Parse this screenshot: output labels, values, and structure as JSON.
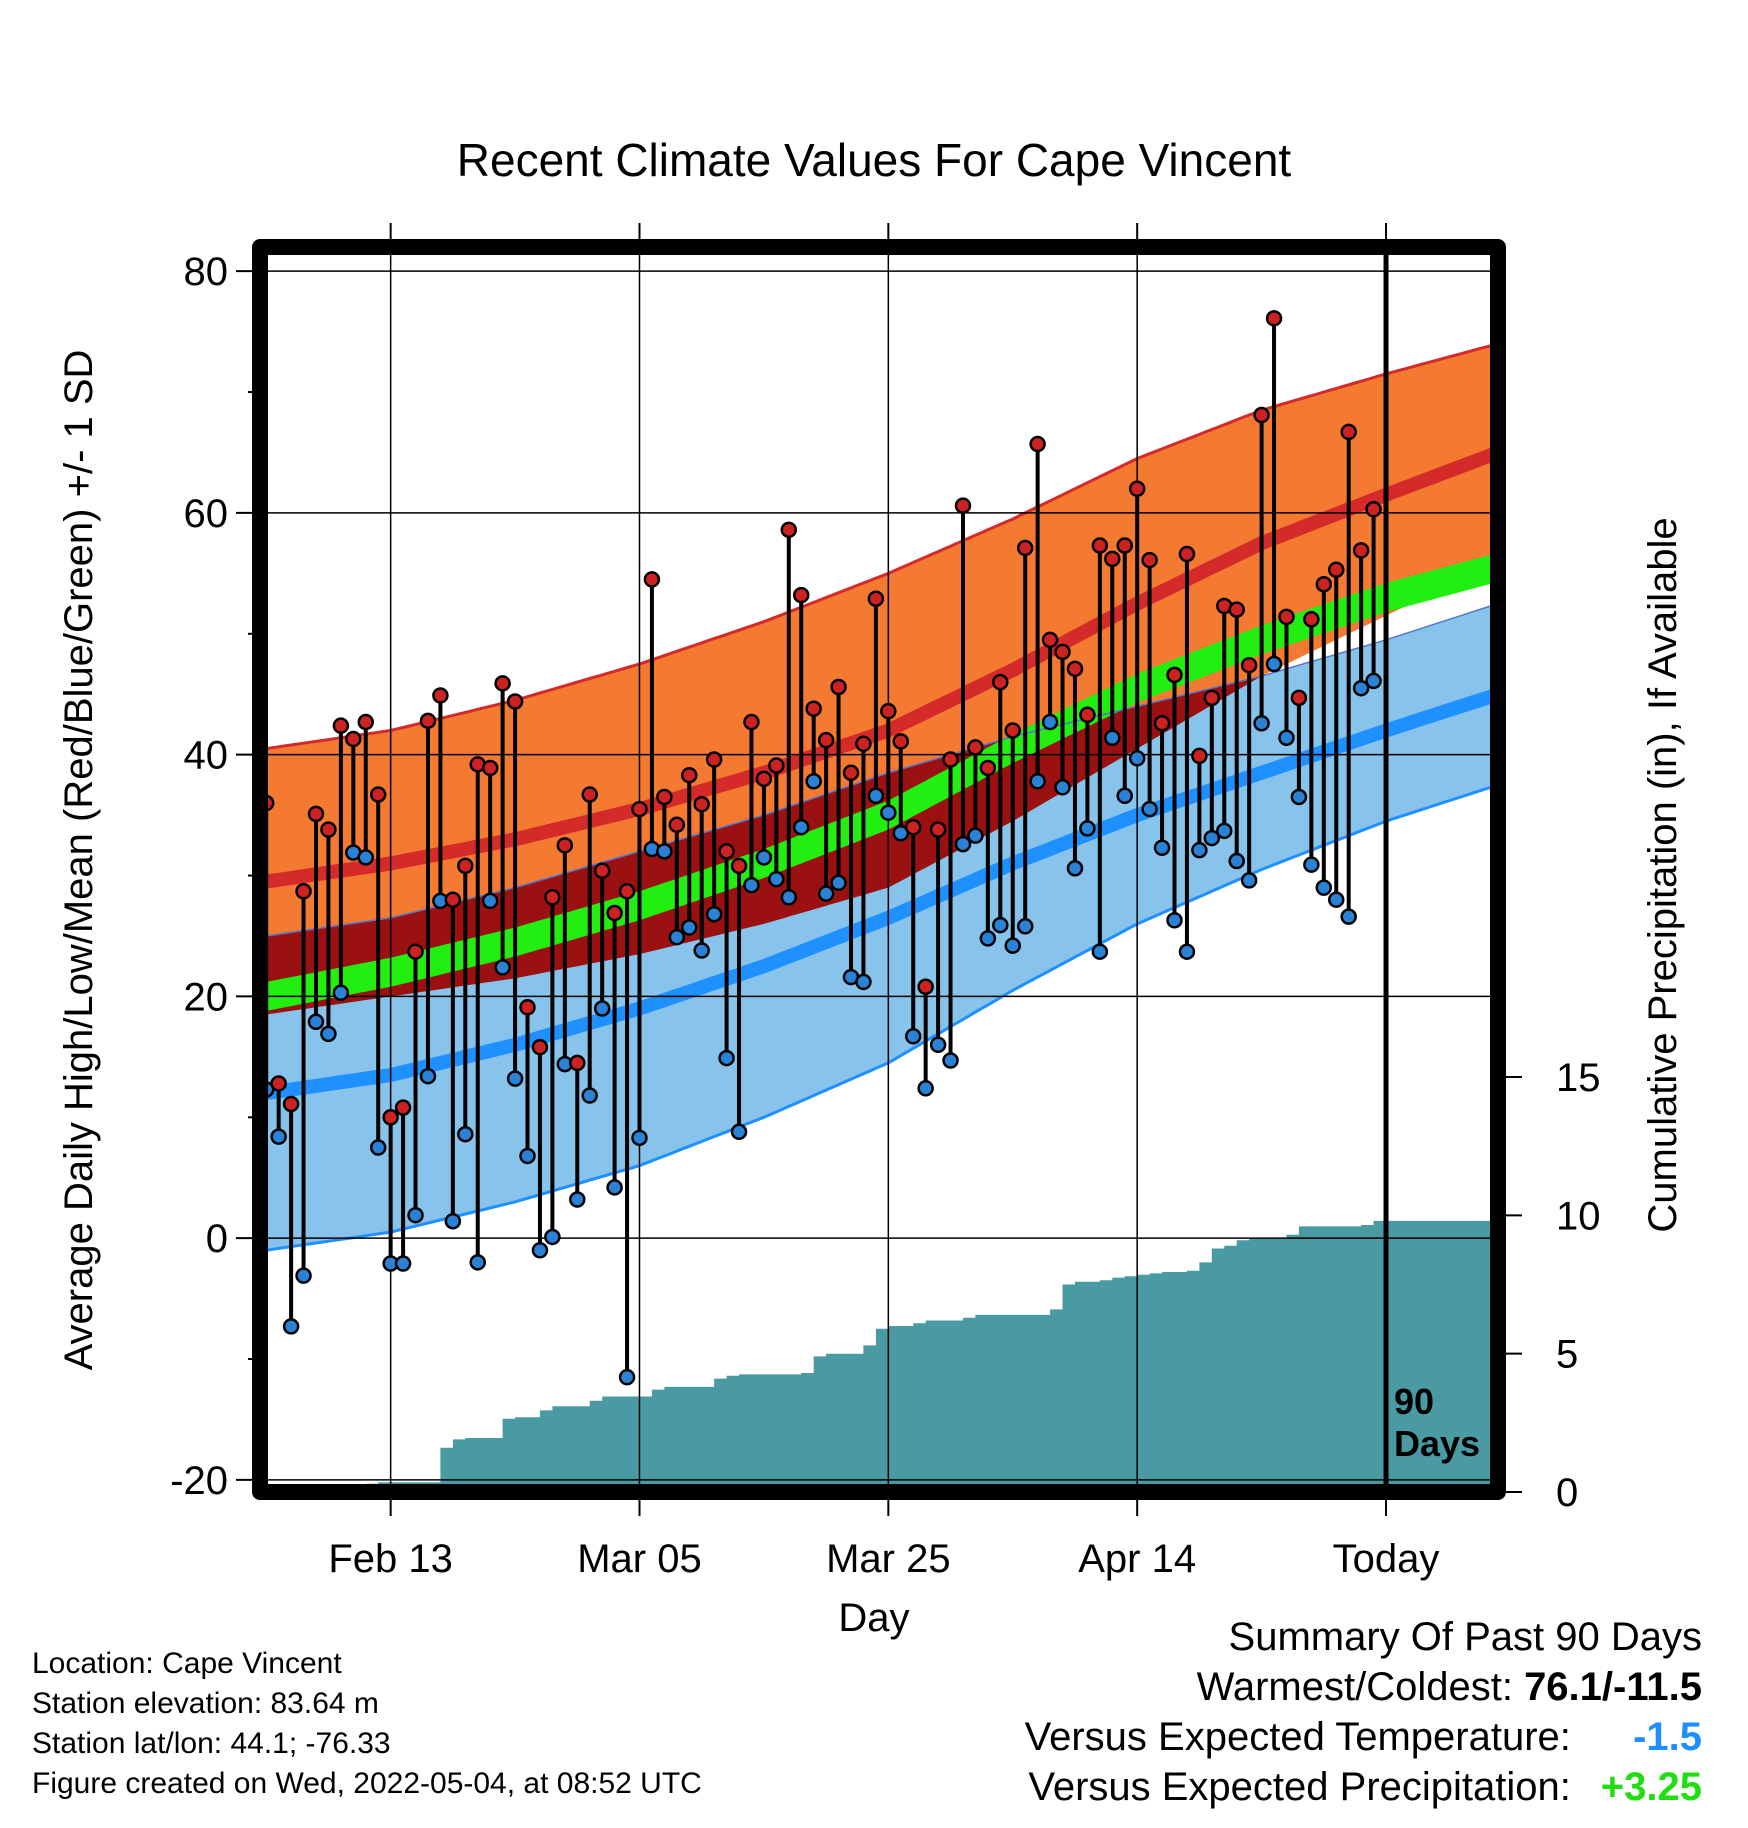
{
  "chart_data": {
    "type": "line",
    "title": "Recent Climate Values For Cape Vincent",
    "xlabel": "Day",
    "ylabel": "Average Daily High/Low/Mean (Red/Blue/Green) +/- 1 SD",
    "y2label": "Cumulative Precipitation (in), If Available",
    "x_tick_labels": [
      "Feb 13",
      "Mar 05",
      "Mar 25",
      "Apr 14",
      "Today"
    ],
    "x_tick_days": [
      10,
      30,
      50,
      70,
      90
    ],
    "xlim": [
      -0.5,
      99
    ],
    "ylim": [
      -21,
      82
    ],
    "y_ticks": [
      -20,
      0,
      20,
      40,
      60,
      80
    ],
    "y2lim": [
      0,
      45
    ],
    "y2_ticks": [
      0,
      5,
      10,
      15
    ],
    "today_marker_label": "90\nDays",
    "colors": {
      "high_band": "#f47a32",
      "high_mean": "#d42a2a",
      "low_band": "#87c3ea",
      "low_mean": "#1e90ff",
      "mean_band": "#22ee11",
      "overlap_band": "#9b1111",
      "precip_fill": "#4a9aa3",
      "high_dot": "#cc2222",
      "low_dot": "#2a82d6"
    },
    "normals": {
      "days": [
        0,
        10,
        20,
        30,
        40,
        50,
        60,
        70,
        80,
        90,
        99
      ],
      "high_mean": [
        29.5,
        31,
        33,
        35.5,
        38.5,
        42,
        47,
        52.5,
        57.5,
        61.5,
        65
      ],
      "high_sd": [
        11,
        11,
        11.5,
        12,
        12.5,
        13,
        12.5,
        12,
        11,
        10,
        9
      ],
      "low_mean": [
        12,
        13.5,
        16,
        19,
        22.5,
        26.5,
        31,
        35,
        38.5,
        42,
        45
      ],
      "low_sd": [
        13,
        13,
        13,
        13,
        12.5,
        12,
        10.5,
        9,
        8,
        7.5,
        7.5
      ],
      "mean_mean": [
        20,
        22,
        24.5,
        27.5,
        31,
        35,
        40.5,
        45.5,
        49.5,
        53,
        55.5
      ],
      "mean_band_width": 2.4
    },
    "series": [
      {
        "name": "High",
        "values": [
          36,
          12.8,
          11.1,
          28.7,
          35.1,
          33.8,
          42.4,
          41.3,
          42.7,
          36.7,
          10,
          10.8,
          23.7,
          42.8,
          44.9,
          28,
          30.8,
          39.2,
          38.9,
          45.9,
          44.4,
          19.1,
          15.8,
          28.2,
          32.5,
          14.5,
          36.7,
          30.4,
          26.9,
          28.7,
          35.5,
          54.5,
          36.5,
          34.2,
          38.3,
          35.9,
          39.6,
          32,
          30.8,
          42.7,
          38,
          39.1,
          58.6,
          53.2,
          43.8,
          41.2,
          45.6,
          38.5,
          40.9,
          52.9,
          43.6,
          41.1,
          34,
          20.8,
          33.8,
          39.6,
          60.6,
          40.6,
          38.9,
          46,
          42,
          57.1,
          65.7,
          49.5,
          48.5,
          47.1,
          43.3,
          57.3,
          56.2,
          57.3,
          62,
          56.1,
          42.6,
          46.6,
          56.6,
          39.9,
          44.7,
          52.3,
          52,
          47.4,
          68.1,
          76.1,
          51.4,
          44.7,
          51.2,
          54.1,
          55.3,
          66.7,
          56.9,
          60.3
        ],
        "color": "#cc2222"
      },
      {
        "name": "Low",
        "values": [
          12.3,
          8.4,
          -7.3,
          -3.1,
          17.9,
          16.9,
          20.3,
          31.9,
          31.5,
          7.5,
          -2.1,
          -2.1,
          1.9,
          13.4,
          27.9,
          1.4,
          8.6,
          -2,
          27.9,
          22.4,
          13.2,
          6.8,
          -1,
          0.1,
          14.4,
          3.2,
          11.8,
          19,
          4.2,
          -11.5,
          8.3,
          32.2,
          32,
          24.9,
          25.7,
          23.8,
          26.8,
          14.9,
          8.8,
          29.2,
          31.5,
          29.7,
          28.2,
          34,
          37.8,
          28.5,
          29.4,
          21.6,
          21.2,
          36.6,
          35.2,
          33.5,
          16.7,
          12.4,
          16,
          14.7,
          32.6,
          33.3,
          24.8,
          25.9,
          24.2,
          25.8,
          37.8,
          42.7,
          37.3,
          30.6,
          33.9,
          23.7,
          41.4,
          36.6,
          39.7,
          35.5,
          32.3,
          26.3,
          23.7,
          32.1,
          33.1,
          33.7,
          31.2,
          29.6,
          42.6,
          47.5,
          41.4,
          36.5,
          30.9,
          29,
          28,
          26.6,
          45.5,
          46.1
        ],
        "color": "#2a82d6"
      },
      {
        "name": "Cumulative Precipitation",
        "values": [
          0.05,
          0.05,
          0.05,
          0.05,
          0.05,
          0.05,
          0.05,
          0.05,
          0.3,
          0.35,
          0.35,
          0.35,
          0.35,
          0.35,
          1.6,
          1.9,
          1.95,
          1.95,
          1.95,
          2.65,
          2.7,
          2.7,
          2.95,
          3.1,
          3.1,
          3.1,
          3.3,
          3.45,
          3.45,
          3.45,
          3.45,
          3.7,
          3.8,
          3.8,
          3.8,
          3.8,
          4.1,
          4.2,
          4.25,
          4.25,
          4.25,
          4.25,
          4.25,
          4.3,
          4.9,
          5,
          5,
          5,
          5.3,
          5.9,
          6,
          6,
          6.1,
          6.2,
          6.2,
          6.2,
          6.3,
          6.4,
          6.4,
          6.4,
          6.4,
          6.4,
          6.4,
          6.6,
          7.5,
          7.6,
          7.6,
          7.65,
          7.75,
          7.8,
          7.85,
          7.9,
          7.95,
          7.95,
          8,
          8.3,
          8.8,
          8.9,
          9.1,
          9.15,
          9.15,
          9.15,
          9.3,
          9.6,
          9.6,
          9.6,
          9.6,
          9.6,
          9.65,
          9.8,
          9.8,
          9.8,
          9.8,
          9.8,
          9.8,
          9.8,
          9.8,
          9.8,
          9.8,
          9.8
        ],
        "color": "#4a9aa3"
      }
    ]
  },
  "info": {
    "location": "Location: Cape Vincent",
    "elevation": "Station elevation: 83.64 m",
    "latlon": "Station lat/lon: 44.1; -76.33",
    "created": "Figure created on Wed, 2022-05-04, at 08:52 UTC"
  },
  "summary": {
    "heading": "Summary Of Past 90 Days",
    "warmest_coldest_label": "Warmest/Coldest:",
    "warmest_coldest_value": "76.1/-11.5",
    "temp_label": "Versus Expected Temperature:",
    "temp_value": "-1.5",
    "temp_color": "#1e8fff",
    "precip_label": "Versus Expected Precipitation:",
    "precip_value": "+3.25",
    "precip_color": "#22dd11"
  }
}
